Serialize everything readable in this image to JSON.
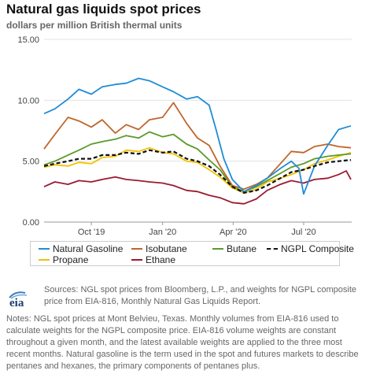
{
  "header": {
    "title": "Natural gas liquids spot prices",
    "subtitle": "dollars per million British thermal units"
  },
  "chart_data": {
    "type": "line",
    "title": "Natural gas liquids spot prices",
    "subtitle": "dollars per million British thermal units",
    "xlabel": "",
    "ylabel": "",
    "ylim": [
      0,
      15
    ],
    "yticks": [
      "0.00",
      "5.00",
      "10.00",
      "15.00"
    ],
    "xlim": [
      "2019-08-01",
      "2020-09-01"
    ],
    "xticks": [
      {
        "date": "2019-10-01",
        "label": "Oct '19"
      },
      {
        "date": "2020-01-01",
        "label": "Jan '20"
      },
      {
        "date": "2020-04-01",
        "label": "Apr '20"
      },
      {
        "date": "2020-07-01",
        "label": "Jul '20"
      }
    ],
    "grid": "horizontal",
    "legend_position": "bottom",
    "series": [
      {
        "name": "Natural Gasoline",
        "color": "#1f8dd6",
        "dash": "solid",
        "points": [
          [
            "2019-08-01",
            8.9
          ],
          [
            "2019-08-15",
            9.3
          ],
          [
            "2019-09-01",
            10.1
          ],
          [
            "2019-09-15",
            10.9
          ],
          [
            "2019-10-01",
            10.5
          ],
          [
            "2019-10-15",
            11.1
          ],
          [
            "2019-11-01",
            11.3
          ],
          [
            "2019-11-15",
            11.4
          ],
          [
            "2019-12-01",
            11.8
          ],
          [
            "2019-12-15",
            11.6
          ],
          [
            "2020-01-01",
            11.1
          ],
          [
            "2020-01-15",
            10.7
          ],
          [
            "2020-02-01",
            10.1
          ],
          [
            "2020-02-15",
            10.3
          ],
          [
            "2020-03-01",
            9.6
          ],
          [
            "2020-03-10",
            7.6
          ],
          [
            "2020-03-20",
            5.2
          ],
          [
            "2020-03-31",
            3.5
          ],
          [
            "2020-04-15",
            2.5
          ],
          [
            "2020-05-01",
            3.0
          ],
          [
            "2020-05-15",
            3.6
          ],
          [
            "2020-06-01",
            4.4
          ],
          [
            "2020-06-15",
            5.0
          ],
          [
            "2020-06-25",
            4.4
          ],
          [
            "2020-07-01",
            2.3
          ],
          [
            "2020-07-15",
            4.6
          ],
          [
            "2020-08-01",
            6.3
          ],
          [
            "2020-08-15",
            7.6
          ],
          [
            "2020-08-31",
            7.9
          ]
        ]
      },
      {
        "name": "Isobutane",
        "color": "#c0652a",
        "dash": "solid",
        "points": [
          [
            "2019-08-01",
            6.0
          ],
          [
            "2019-08-15",
            7.2
          ],
          [
            "2019-09-01",
            8.6
          ],
          [
            "2019-09-15",
            8.3
          ],
          [
            "2019-10-01",
            7.8
          ],
          [
            "2019-10-15",
            8.4
          ],
          [
            "2019-11-01",
            7.3
          ],
          [
            "2019-11-15",
            8.0
          ],
          [
            "2019-12-01",
            7.6
          ],
          [
            "2019-12-15",
            8.4
          ],
          [
            "2020-01-01",
            8.6
          ],
          [
            "2020-01-15",
            9.8
          ],
          [
            "2020-02-01",
            8.1
          ],
          [
            "2020-02-15",
            6.9
          ],
          [
            "2020-03-01",
            6.3
          ],
          [
            "2020-03-15",
            4.6
          ],
          [
            "2020-03-31",
            3.0
          ],
          [
            "2020-04-15",
            2.7
          ],
          [
            "2020-05-01",
            3.1
          ],
          [
            "2020-05-15",
            3.6
          ],
          [
            "2020-06-01",
            4.8
          ],
          [
            "2020-06-15",
            5.8
          ],
          [
            "2020-07-01",
            5.7
          ],
          [
            "2020-07-15",
            6.2
          ],
          [
            "2020-08-01",
            6.4
          ],
          [
            "2020-08-15",
            6.2
          ],
          [
            "2020-08-31",
            6.1
          ]
        ]
      },
      {
        "name": "Butane",
        "color": "#5a9a2a",
        "dash": "solid",
        "points": [
          [
            "2019-08-01",
            4.7
          ],
          [
            "2019-08-15",
            5.0
          ],
          [
            "2019-09-01",
            5.5
          ],
          [
            "2019-09-15",
            5.9
          ],
          [
            "2019-10-01",
            6.4
          ],
          [
            "2019-10-15",
            6.6
          ],
          [
            "2019-11-01",
            6.8
          ],
          [
            "2019-11-15",
            7.1
          ],
          [
            "2019-12-01",
            6.9
          ],
          [
            "2019-12-15",
            7.4
          ],
          [
            "2020-01-01",
            7.0
          ],
          [
            "2020-01-15",
            7.2
          ],
          [
            "2020-02-01",
            6.4
          ],
          [
            "2020-02-15",
            6.0
          ],
          [
            "2020-03-01",
            5.1
          ],
          [
            "2020-03-15",
            4.3
          ],
          [
            "2020-03-31",
            2.9
          ],
          [
            "2020-04-15",
            2.5
          ],
          [
            "2020-05-01",
            2.9
          ],
          [
            "2020-05-15",
            3.4
          ],
          [
            "2020-06-01",
            4.0
          ],
          [
            "2020-06-15",
            4.5
          ],
          [
            "2020-07-01",
            4.8
          ],
          [
            "2020-07-15",
            5.2
          ],
          [
            "2020-08-01",
            5.4
          ],
          [
            "2020-08-15",
            5.5
          ],
          [
            "2020-08-31",
            5.6
          ]
        ]
      },
      {
        "name": "NGPL Composite",
        "color": "#111111",
        "dash": "dashed",
        "points": [
          [
            "2019-08-01",
            4.6
          ],
          [
            "2019-08-15",
            4.8
          ],
          [
            "2019-09-01",
            5.0
          ],
          [
            "2019-09-15",
            5.2
          ],
          [
            "2019-10-01",
            5.2
          ],
          [
            "2019-10-15",
            5.5
          ],
          [
            "2019-11-01",
            5.5
          ],
          [
            "2019-11-15",
            5.7
          ],
          [
            "2019-12-01",
            5.6
          ],
          [
            "2019-12-15",
            5.9
          ],
          [
            "2020-01-01",
            5.7
          ],
          [
            "2020-01-15",
            5.8
          ],
          [
            "2020-02-01",
            5.2
          ],
          [
            "2020-02-15",
            5.0
          ],
          [
            "2020-03-01",
            4.6
          ],
          [
            "2020-03-15",
            3.9
          ],
          [
            "2020-03-31",
            2.9
          ],
          [
            "2020-04-15",
            2.4
          ],
          [
            "2020-05-01",
            2.6
          ],
          [
            "2020-05-15",
            3.0
          ],
          [
            "2020-06-01",
            3.6
          ],
          [
            "2020-06-15",
            4.1
          ],
          [
            "2020-07-01",
            4.3
          ],
          [
            "2020-07-15",
            4.6
          ],
          [
            "2020-08-01",
            4.9
          ],
          [
            "2020-08-15",
            5.0
          ],
          [
            "2020-08-31",
            5.1
          ]
        ]
      },
      {
        "name": "Propane",
        "color": "#f2c200",
        "dash": "solid",
        "points": [
          [
            "2019-08-01",
            4.5
          ],
          [
            "2019-08-15",
            4.7
          ],
          [
            "2019-09-01",
            4.6
          ],
          [
            "2019-09-15",
            4.9
          ],
          [
            "2019-10-01",
            4.8
          ],
          [
            "2019-10-15",
            5.3
          ],
          [
            "2019-11-01",
            5.4
          ],
          [
            "2019-11-15",
            5.9
          ],
          [
            "2019-12-01",
            5.8
          ],
          [
            "2019-12-15",
            6.1
          ],
          [
            "2020-01-01",
            5.7
          ],
          [
            "2020-01-15",
            5.6
          ],
          [
            "2020-02-01",
            5.0
          ],
          [
            "2020-02-15",
            4.9
          ],
          [
            "2020-03-01",
            4.3
          ],
          [
            "2020-03-15",
            3.7
          ],
          [
            "2020-03-31",
            2.8
          ],
          [
            "2020-04-15",
            2.4
          ],
          [
            "2020-05-01",
            2.7
          ],
          [
            "2020-05-15",
            3.3
          ],
          [
            "2020-06-01",
            3.6
          ],
          [
            "2020-06-15",
            3.9
          ],
          [
            "2020-07-01",
            4.3
          ],
          [
            "2020-07-15",
            4.8
          ],
          [
            "2020-08-01",
            5.1
          ],
          [
            "2020-08-15",
            5.4
          ],
          [
            "2020-08-31",
            5.7
          ]
        ]
      },
      {
        "name": "Ethane",
        "color": "#9b1b30",
        "dash": "solid",
        "points": [
          [
            "2019-08-01",
            2.9
          ],
          [
            "2019-08-15",
            3.3
          ],
          [
            "2019-09-01",
            3.1
          ],
          [
            "2019-09-15",
            3.4
          ],
          [
            "2019-10-01",
            3.3
          ],
          [
            "2019-10-15",
            3.5
          ],
          [
            "2019-11-01",
            3.7
          ],
          [
            "2019-11-15",
            3.5
          ],
          [
            "2019-12-01",
            3.4
          ],
          [
            "2019-12-15",
            3.3
          ],
          [
            "2020-01-01",
            3.2
          ],
          [
            "2020-01-15",
            3.0
          ],
          [
            "2020-02-01",
            2.6
          ],
          [
            "2020-02-15",
            2.5
          ],
          [
            "2020-03-01",
            2.2
          ],
          [
            "2020-03-15",
            2.0
          ],
          [
            "2020-03-31",
            1.6
          ],
          [
            "2020-04-15",
            1.5
          ],
          [
            "2020-05-01",
            1.9
          ],
          [
            "2020-05-15",
            2.6
          ],
          [
            "2020-06-01",
            3.1
          ],
          [
            "2020-06-15",
            3.4
          ],
          [
            "2020-07-01",
            3.2
          ],
          [
            "2020-07-15",
            3.5
          ],
          [
            "2020-08-01",
            3.6
          ],
          [
            "2020-08-15",
            3.9
          ],
          [
            "2020-08-25",
            4.2
          ],
          [
            "2020-08-31",
            3.5
          ]
        ]
      }
    ]
  },
  "logo": {
    "text": "eia"
  },
  "footer": {
    "sources": "Sources: NGL spot prices from Bloomberg, L.P., and weights for NGPL composite price from EIA-816, Monthly Natural Gas Liquids Report.",
    "notes": "Notes: NGL spot prices at Mont Belvieu, Texas. Monthly volumes from EIA-816 used to calculate weights for the NGPL composite price. EIA-816 volume weights are constant throughout a given month, and the latest available weights are applied to the three most recent months. Natural gasoline is the term used in the spot and futures markets to describe pentanes and hexanes, the primary components of pentanes plus."
  }
}
